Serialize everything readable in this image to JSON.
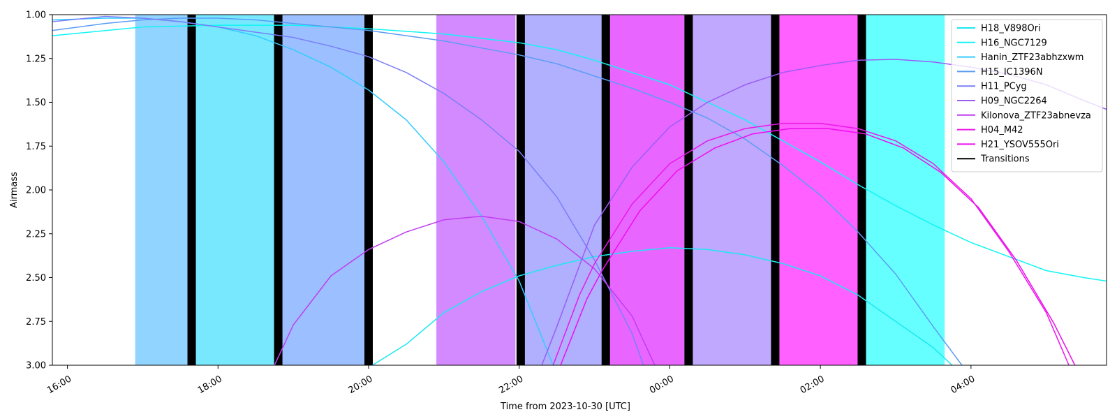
{
  "chart_data": {
    "type": "line",
    "xlabel": "Time from 2023-10-30 [UTC]",
    "ylabel": "Airmass",
    "x_unit": "hours_utc_from_2023-10-30_00:00",
    "xlim": [
      -8.2,
      5.8
    ],
    "ylim": [
      3.0,
      1.0
    ],
    "y_inverted": true,
    "x_ticks": [
      {
        "value": -8,
        "label": "16:00"
      },
      {
        "value": -6,
        "label": "18:00"
      },
      {
        "value": -4,
        "label": "20:00"
      },
      {
        "value": -2,
        "label": "22:00"
      },
      {
        "value": 0,
        "label": "00:00"
      },
      {
        "value": 2,
        "label": "02:00"
      },
      {
        "value": 4,
        "label": "04:00"
      }
    ],
    "y_ticks": [
      {
        "value": 1.0,
        "label": "1.00"
      },
      {
        "value": 1.25,
        "label": "1.25"
      },
      {
        "value": 1.5,
        "label": "1.50"
      },
      {
        "value": 1.75,
        "label": "1.75"
      },
      {
        "value": 2.0,
        "label": "2.00"
      },
      {
        "value": 2.25,
        "label": "2.25"
      },
      {
        "value": 2.5,
        "label": "2.50"
      },
      {
        "value": 2.75,
        "label": "2.75"
      },
      {
        "value": 3.0,
        "label": "3.00"
      }
    ],
    "legend_position": "top-right",
    "series": [
      {
        "name": "H18_V898Ori",
        "color": "#1ae8f0",
        "points": [
          [
            -3.95,
            3.0
          ],
          [
            -3.5,
            2.88
          ],
          [
            -3.0,
            2.7
          ],
          [
            -2.5,
            2.58
          ],
          [
            -2.0,
            2.49
          ],
          [
            -1.5,
            2.43
          ],
          [
            -1.0,
            2.38
          ],
          [
            -0.5,
            2.35
          ],
          [
            0.0,
            2.33
          ],
          [
            0.5,
            2.34
          ],
          [
            1.0,
            2.37
          ],
          [
            1.5,
            2.42
          ],
          [
            2.0,
            2.49
          ],
          [
            2.5,
            2.6
          ],
          [
            3.0,
            2.75
          ],
          [
            3.5,
            2.9
          ],
          [
            3.75,
            3.0
          ]
        ]
      },
      {
        "name": "H16_NGC7129",
        "color": "#10f4f4",
        "points": [
          [
            -8.2,
            1.12
          ],
          [
            -7.0,
            1.07
          ],
          [
            -6.0,
            1.06
          ],
          [
            -5.0,
            1.06
          ],
          [
            -4.0,
            1.08
          ],
          [
            -3.0,
            1.11
          ],
          [
            -2.0,
            1.16
          ],
          [
            -1.5,
            1.2
          ],
          [
            -1.0,
            1.26
          ],
          [
            0.0,
            1.4
          ],
          [
            1.0,
            1.6
          ],
          [
            1.5,
            1.72
          ],
          [
            2.0,
            1.84
          ],
          [
            2.5,
            1.97
          ],
          [
            3.0,
            2.09
          ],
          [
            3.5,
            2.2
          ],
          [
            4.0,
            2.3
          ],
          [
            4.5,
            2.38
          ],
          [
            5.0,
            2.46
          ],
          [
            5.5,
            2.5
          ],
          [
            5.8,
            2.52
          ]
        ]
      },
      {
        "name": "Hanin_ZTF23abhzxwm",
        "color": "#33ccff",
        "points": [
          [
            -8.2,
            1.03
          ],
          [
            -7.5,
            1.02
          ],
          [
            -7.0,
            1.02
          ],
          [
            -6.5,
            1.04
          ],
          [
            -6.0,
            1.07
          ],
          [
            -5.5,
            1.12
          ],
          [
            -5.0,
            1.2
          ],
          [
            -4.5,
            1.3
          ],
          [
            -4.0,
            1.43
          ],
          [
            -3.5,
            1.6
          ],
          [
            -3.0,
            1.84
          ],
          [
            -2.5,
            2.15
          ],
          [
            -2.0,
            2.52
          ],
          [
            -1.55,
            3.0
          ]
        ]
      },
      {
        "name": "H15_IC1396N",
        "color": "#5a9cf5",
        "points": [
          [
            -8.2,
            1.09
          ],
          [
            -7.5,
            1.05
          ],
          [
            -7.0,
            1.03
          ],
          [
            -6.5,
            1.02
          ],
          [
            -6.0,
            1.02
          ],
          [
            -5.5,
            1.03
          ],
          [
            -5.0,
            1.05
          ],
          [
            -4.5,
            1.07
          ],
          [
            -4.0,
            1.09
          ],
          [
            -3.5,
            1.12
          ],
          [
            -3.0,
            1.15
          ],
          [
            -2.5,
            1.19
          ],
          [
            -2.0,
            1.23
          ],
          [
            -1.5,
            1.28
          ],
          [
            -1.0,
            1.35
          ],
          [
            -0.5,
            1.42
          ],
          [
            0.0,
            1.5
          ],
          [
            0.5,
            1.59
          ],
          [
            1.0,
            1.71
          ],
          [
            1.5,
            1.86
          ],
          [
            2.0,
            2.03
          ],
          [
            2.5,
            2.24
          ],
          [
            3.0,
            2.48
          ],
          [
            3.5,
            2.78
          ],
          [
            3.88,
            3.0
          ]
        ]
      },
      {
        "name": "H11_PCyg",
        "color": "#7a7ef8",
        "points": [
          [
            -8.2,
            1.04
          ],
          [
            -7.5,
            1.01
          ],
          [
            -7.0,
            1.02
          ],
          [
            -6.5,
            1.04
          ],
          [
            -6.0,
            1.07
          ],
          [
            -5.5,
            1.1
          ],
          [
            -5.0,
            1.13
          ],
          [
            -4.5,
            1.18
          ],
          [
            -4.0,
            1.24
          ],
          [
            -3.5,
            1.33
          ],
          [
            -3.0,
            1.45
          ],
          [
            -2.5,
            1.6
          ],
          [
            -2.0,
            1.78
          ],
          [
            -1.5,
            2.04
          ],
          [
            -1.0,
            2.4
          ],
          [
            -0.5,
            2.82
          ],
          [
            -0.35,
            3.0
          ]
        ]
      },
      {
        "name": "H09_NGC2264",
        "color": "#9a5cf5",
        "points": [
          [
            -1.7,
            3.0
          ],
          [
            -1.5,
            2.78
          ],
          [
            -1.0,
            2.2
          ],
          [
            -0.5,
            1.87
          ],
          [
            0.0,
            1.64
          ],
          [
            0.5,
            1.5
          ],
          [
            1.0,
            1.4
          ],
          [
            1.5,
            1.33
          ],
          [
            2.0,
            1.29
          ],
          [
            2.5,
            1.26
          ],
          [
            3.0,
            1.255
          ],
          [
            3.5,
            1.27
          ],
          [
            4.0,
            1.3
          ],
          [
            4.5,
            1.34
          ],
          [
            5.0,
            1.4
          ],
          [
            5.5,
            1.49
          ],
          [
            5.8,
            1.54
          ]
        ]
      },
      {
        "name": "Kilonova_ZTF23abnevza",
        "color": "#c03cf2",
        "points": [
          [
            -5.25,
            3.0
          ],
          [
            -5.0,
            2.77
          ],
          [
            -4.5,
            2.49
          ],
          [
            -4.0,
            2.34
          ],
          [
            -3.5,
            2.24
          ],
          [
            -3.0,
            2.17
          ],
          [
            -2.5,
            2.15
          ],
          [
            -2.0,
            2.18
          ],
          [
            -1.5,
            2.28
          ],
          [
            -1.0,
            2.45
          ],
          [
            -0.5,
            2.72
          ],
          [
            -0.2,
            3.0
          ]
        ]
      },
      {
        "name": "H04_M42",
        "color": "#ea18ea",
        "points": [
          [
            -1.55,
            3.0
          ],
          [
            -1.2,
            2.6
          ],
          [
            -1.0,
            2.42
          ],
          [
            -0.5,
            2.08
          ],
          [
            0.0,
            1.85
          ],
          [
            0.5,
            1.72
          ],
          [
            1.0,
            1.65
          ],
          [
            1.5,
            1.62
          ],
          [
            2.0,
            1.62
          ],
          [
            2.5,
            1.65
          ],
          [
            3.0,
            1.72
          ],
          [
            3.5,
            1.85
          ],
          [
            4.0,
            2.05
          ],
          [
            4.5,
            2.35
          ],
          [
            5.0,
            2.7
          ],
          [
            5.3,
            3.0
          ]
        ]
      },
      {
        "name": "H21_YSOV555Ori",
        "color": "#f00af0",
        "points": [
          [
            -1.45,
            3.0
          ],
          [
            -1.1,
            2.62
          ],
          [
            -0.9,
            2.46
          ],
          [
            -0.4,
            2.12
          ],
          [
            0.1,
            1.89
          ],
          [
            0.6,
            1.76
          ],
          [
            1.1,
            1.68
          ],
          [
            1.6,
            1.65
          ],
          [
            2.1,
            1.65
          ],
          [
            2.6,
            1.68
          ],
          [
            3.1,
            1.76
          ],
          [
            3.6,
            1.9
          ],
          [
            4.1,
            2.1
          ],
          [
            4.6,
            2.4
          ],
          [
            5.1,
            2.76
          ],
          [
            5.38,
            3.0
          ]
        ]
      }
    ],
    "blocks": [
      {
        "x": [
          -7.1,
          -6.4
        ],
        "color": "#90d4ff"
      },
      {
        "x": [
          -6.3,
          -5.25
        ],
        "color": "#78e8ff"
      },
      {
        "x": [
          -5.15,
          -4.05
        ],
        "color": "#9cc0ff"
      },
      {
        "x": [
          -3.1,
          -2.05
        ],
        "color": "#d48aff"
      },
      {
        "x": [
          -1.95,
          -0.9
        ],
        "color": "#b0b0ff"
      },
      {
        "x": [
          -0.8,
          0.2
        ],
        "color": "#e866ff"
      },
      {
        "x": [
          0.3,
          1.35
        ],
        "color": "#c0a8ff"
      },
      {
        "x": [
          1.45,
          2.5
        ],
        "color": "#ff60ff"
      },
      {
        "x": [
          2.6,
          3.65
        ],
        "color": "#66ffff"
      }
    ],
    "transitions": {
      "name": "Transitions",
      "color": "#000000",
      "x": [
        -6.35,
        -5.2,
        -4.0,
        -1.98,
        -0.85,
        0.25,
        1.4,
        2.55
      ]
    }
  }
}
